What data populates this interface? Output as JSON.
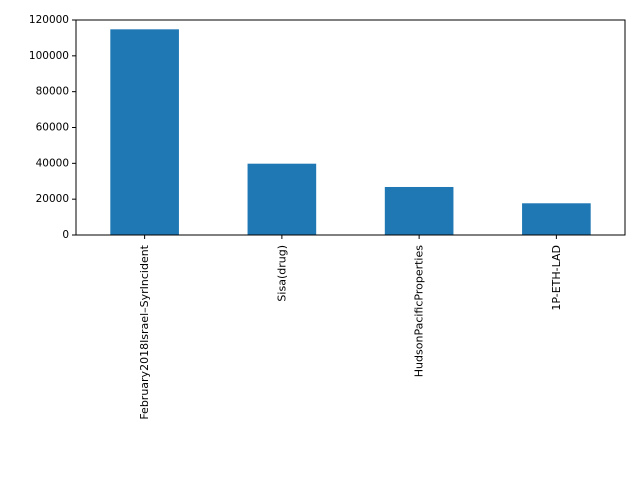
{
  "chart_data": {
    "type": "bar",
    "categories": [
      "February2018Israel–SyrIncident",
      "Sisa(drug)",
      "HudsonPacificProperties",
      "1P-ETH-LAD"
    ],
    "values": [
      114800,
      39800,
      26800,
      17700
    ],
    "ylim": [
      0,
      120000
    ],
    "yticks": [
      0,
      20000,
      40000,
      60000,
      80000,
      100000,
      120000
    ],
    "bar_color": "#1f77b4",
    "grid": false,
    "title": "",
    "xlabel": "",
    "ylabel": ""
  }
}
